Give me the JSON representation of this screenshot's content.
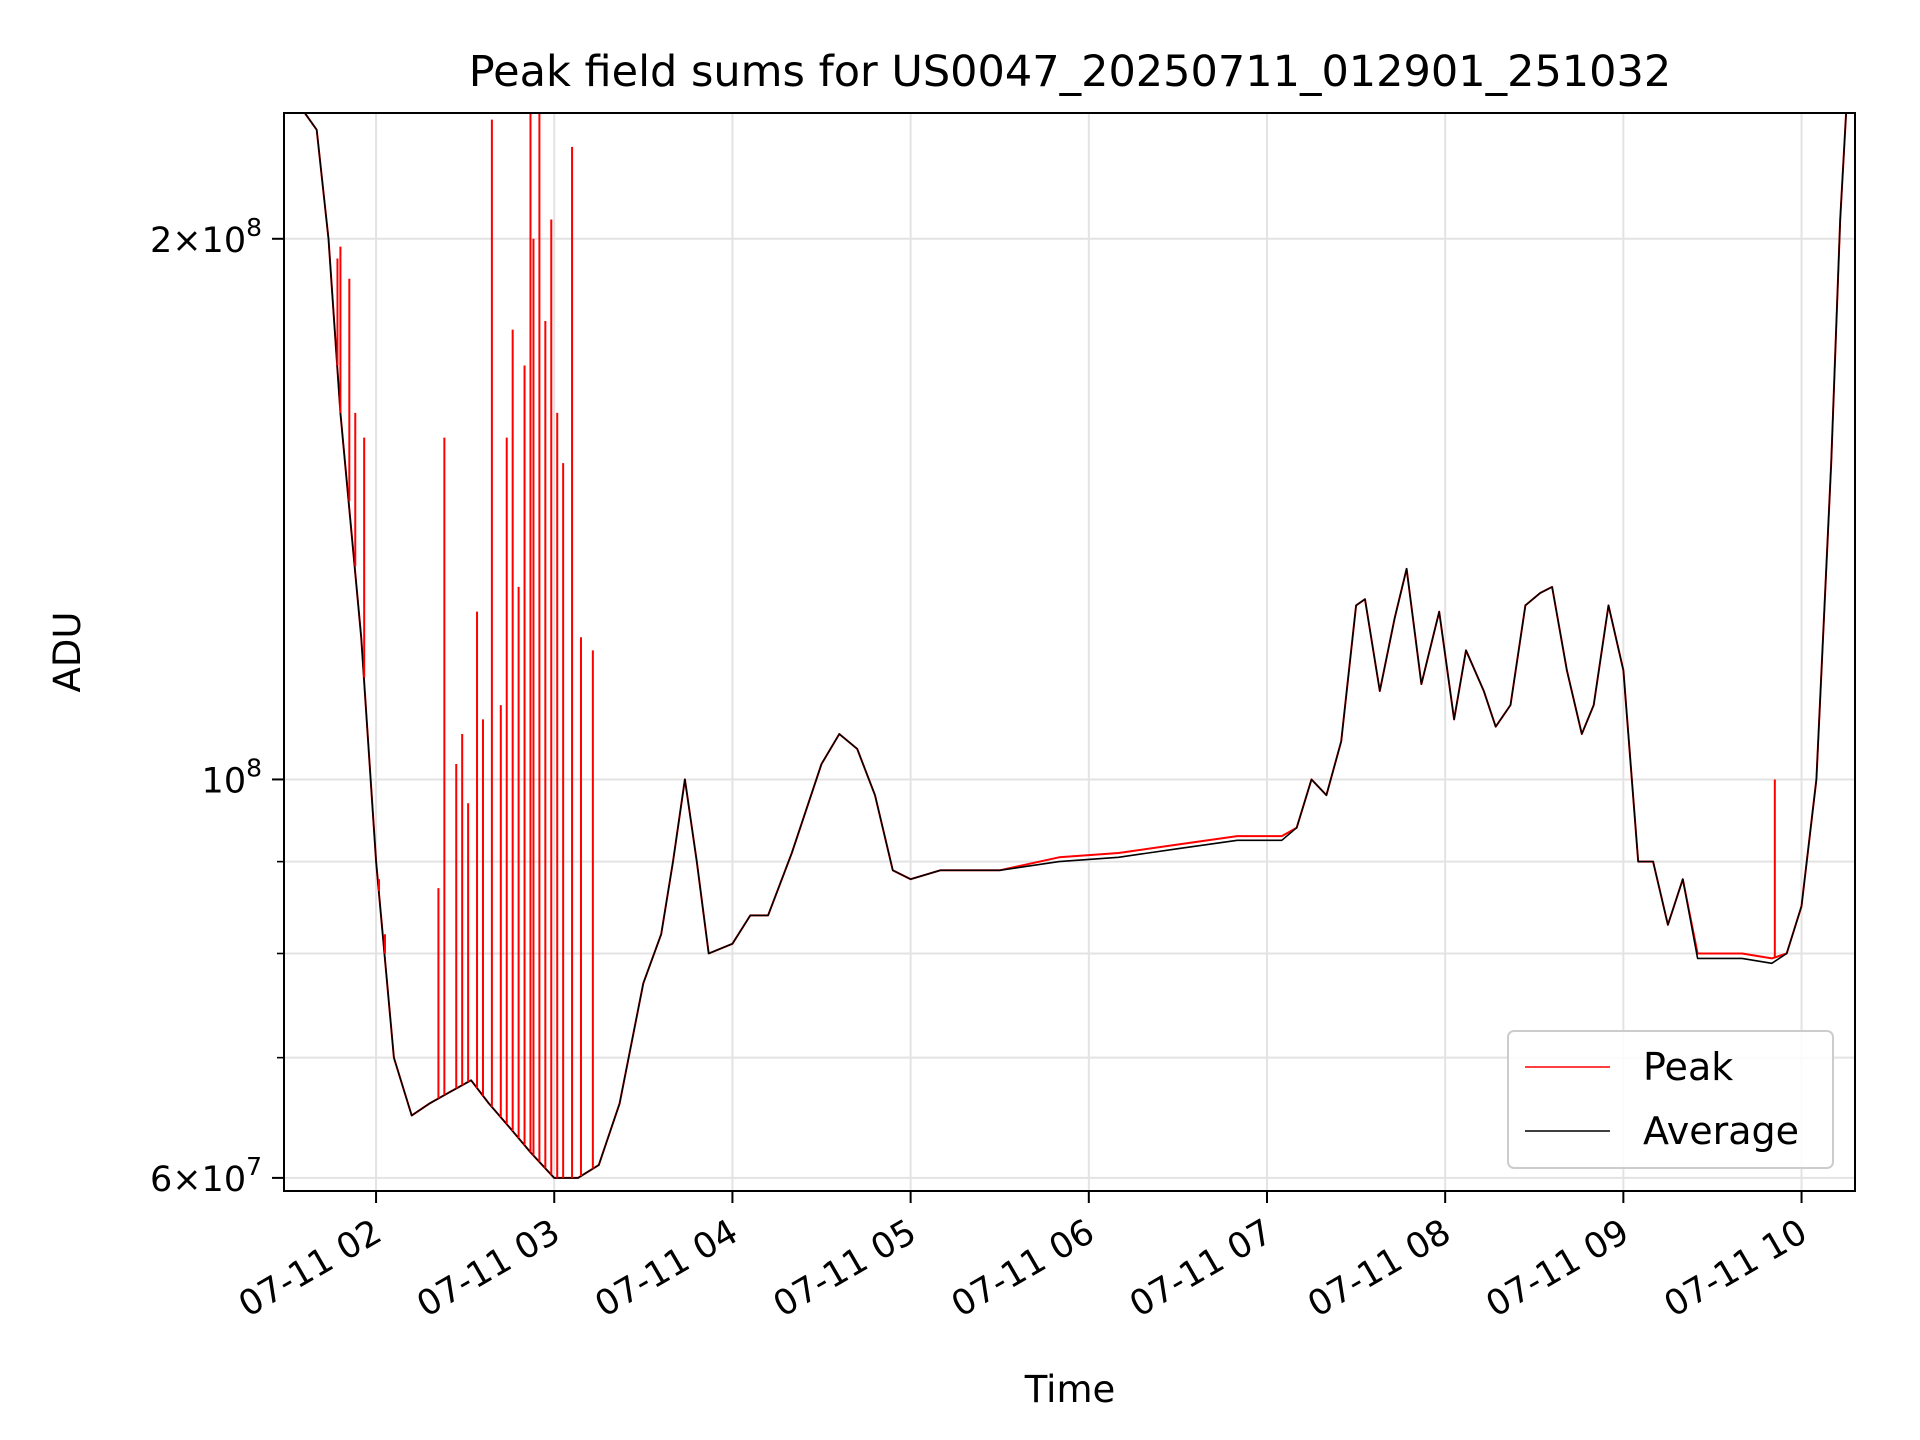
{
  "chart_data": {
    "type": "line",
    "title": "Peak field sums for US0047_20250711_012901_251032",
    "xlabel": "Time",
    "ylabel": "ADU",
    "yscale": "log",
    "xlim": [
      "2025-07-11 01:29",
      "2025-07-11 10:18"
    ],
    "ylim": [
      59000000,
      235000000
    ],
    "grid": true,
    "legend_position": "bottom-right",
    "x_ticks": [
      "07-11 02",
      "07-11 03",
      "07-11 04",
      "07-11 05",
      "07-11 06",
      "07-11 07",
      "07-11 08",
      "07-11 09",
      "07-11 10"
    ],
    "y_ticks": [
      {
        "value": 60000000,
        "base": "6",
        "exp": "7"
      },
      {
        "value": 100000000,
        "base": "",
        "exp": "8"
      },
      {
        "value": 200000000,
        "base": "2",
        "exp": "8"
      }
    ],
    "series": [
      {
        "name": "Peak",
        "color": "#ff0000",
        "points": [
          [
            "2025-07-11 01:29",
            235
          ],
          [
            "2025-07-11 01:36",
            235
          ],
          [
            "2025-07-11 01:40",
            230
          ],
          [
            "2025-07-11 01:44",
            200
          ],
          [
            "2025-07-11 01:48",
            160
          ],
          [
            "2025-07-11 01:55",
            120
          ],
          [
            "2025-07-11 02:00",
            90
          ],
          [
            "2025-07-11 02:06",
            70
          ],
          [
            "2025-07-11 02:12",
            65
          ],
          [
            "2025-07-11 02:18",
            66
          ],
          [
            "2025-07-11 02:25",
            67
          ],
          [
            "2025-07-11 02:32",
            68
          ],
          [
            "2025-07-11 02:38",
            66
          ],
          [
            "2025-07-11 02:45",
            64
          ],
          [
            "2025-07-11 02:52",
            62
          ],
          [
            "2025-07-11 03:00",
            60
          ],
          [
            "2025-07-11 03:08",
            60
          ],
          [
            "2025-07-11 03:15",
            61
          ],
          [
            "2025-07-11 03:22",
            66
          ],
          [
            "2025-07-11 03:30",
            77
          ],
          [
            "2025-07-11 03:36",
            82
          ],
          [
            "2025-07-11 03:40",
            90
          ],
          [
            "2025-07-11 03:44",
            100
          ],
          [
            "2025-07-11 03:48",
            90
          ],
          [
            "2025-07-11 03:52",
            80
          ],
          [
            "2025-07-11 04:00",
            81
          ],
          [
            "2025-07-11 04:06",
            84
          ],
          [
            "2025-07-11 04:12",
            84
          ],
          [
            "2025-07-11 04:20",
            91
          ],
          [
            "2025-07-11 04:30",
            102
          ],
          [
            "2025-07-11 04:36",
            106
          ],
          [
            "2025-07-11 04:42",
            104
          ],
          [
            "2025-07-11 04:48",
            98
          ],
          [
            "2025-07-11 04:54",
            89
          ],
          [
            "2025-07-11 05:00",
            88
          ],
          [
            "2025-07-11 05:10",
            89
          ],
          [
            "2025-07-11 05:30",
            89
          ],
          [
            "2025-07-11 05:50",
            90.5
          ],
          [
            "2025-07-11 06:10",
            91
          ],
          [
            "2025-07-11 06:30",
            92
          ],
          [
            "2025-07-11 06:50",
            93
          ],
          [
            "2025-07-11 07:05",
            93
          ],
          [
            "2025-07-11 07:10",
            94
          ],
          [
            "2025-07-11 07:15",
            100
          ],
          [
            "2025-07-11 07:20",
            98
          ],
          [
            "2025-07-11 07:25",
            105
          ],
          [
            "2025-07-11 07:30",
            125
          ],
          [
            "2025-07-11 07:33",
            126
          ],
          [
            "2025-07-11 07:38",
            112
          ],
          [
            "2025-07-11 07:43",
            123
          ],
          [
            "2025-07-11 07:47",
            131
          ],
          [
            "2025-07-11 07:52",
            113
          ],
          [
            "2025-07-11 07:58",
            124
          ],
          [
            "2025-07-11 08:03",
            108
          ],
          [
            "2025-07-11 08:07",
            118
          ],
          [
            "2025-07-11 08:13",
            112
          ],
          [
            "2025-07-11 08:17",
            107
          ],
          [
            "2025-07-11 08:22",
            110
          ],
          [
            "2025-07-11 08:27",
            125
          ],
          [
            "2025-07-11 08:32",
            127
          ],
          [
            "2025-07-11 08:36",
            128
          ],
          [
            "2025-07-11 08:41",
            115
          ],
          [
            "2025-07-11 08:46",
            106
          ],
          [
            "2025-07-11 08:50",
            110
          ],
          [
            "2025-07-11 08:55",
            125
          ],
          [
            "2025-07-11 09:00",
            115
          ],
          [
            "2025-07-11 09:05",
            90
          ],
          [
            "2025-07-11 09:10",
            90
          ],
          [
            "2025-07-11 09:15",
            83
          ],
          [
            "2025-07-11 09:20",
            88
          ],
          [
            "2025-07-11 09:25",
            80
          ],
          [
            "2025-07-11 09:40",
            80
          ],
          [
            "2025-07-11 09:50",
            79.5
          ],
          [
            "2025-07-11 09:55",
            80
          ],
          [
            "2025-07-11 10:00",
            85
          ],
          [
            "2025-07-11 10:05",
            100
          ],
          [
            "2025-07-11 10:10",
            150
          ],
          [
            "2025-07-11 10:13",
            205
          ],
          [
            "2025-07-11 10:15",
            235
          ],
          [
            "2025-07-11 10:18",
            235
          ]
        ]
      },
      {
        "name": "Average",
        "color": "#000000",
        "points": [
          [
            "2025-07-11 01:29",
            235
          ],
          [
            "2025-07-11 01:36",
            235
          ],
          [
            "2025-07-11 01:40",
            230
          ],
          [
            "2025-07-11 01:44",
            200
          ],
          [
            "2025-07-11 01:48",
            160
          ],
          [
            "2025-07-11 01:55",
            120
          ],
          [
            "2025-07-11 02:00",
            90
          ],
          [
            "2025-07-11 02:06",
            70
          ],
          [
            "2025-07-11 02:12",
            65
          ],
          [
            "2025-07-11 02:18",
            66
          ],
          [
            "2025-07-11 02:25",
            67
          ],
          [
            "2025-07-11 02:32",
            68
          ],
          [
            "2025-07-11 02:38",
            66
          ],
          [
            "2025-07-11 02:45",
            64
          ],
          [
            "2025-07-11 02:52",
            62
          ],
          [
            "2025-07-11 03:00",
            60
          ],
          [
            "2025-07-11 03:08",
            60
          ],
          [
            "2025-07-11 03:15",
            61
          ],
          [
            "2025-07-11 03:22",
            66
          ],
          [
            "2025-07-11 03:30",
            77
          ],
          [
            "2025-07-11 03:36",
            82
          ],
          [
            "2025-07-11 03:40",
            90
          ],
          [
            "2025-07-11 03:44",
            100
          ],
          [
            "2025-07-11 03:48",
            90
          ],
          [
            "2025-07-11 03:52",
            80
          ],
          [
            "2025-07-11 04:00",
            81
          ],
          [
            "2025-07-11 04:06",
            84
          ],
          [
            "2025-07-11 04:12",
            84
          ],
          [
            "2025-07-11 04:20",
            91
          ],
          [
            "2025-07-11 04:30",
            102
          ],
          [
            "2025-07-11 04:36",
            106
          ],
          [
            "2025-07-11 04:42",
            104
          ],
          [
            "2025-07-11 04:48",
            98
          ],
          [
            "2025-07-11 04:54",
            89
          ],
          [
            "2025-07-11 05:00",
            88
          ],
          [
            "2025-07-11 05:10",
            89
          ],
          [
            "2025-07-11 05:30",
            89
          ],
          [
            "2025-07-11 05:50",
            90
          ],
          [
            "2025-07-11 06:10",
            90.5
          ],
          [
            "2025-07-11 06:30",
            91.5
          ],
          [
            "2025-07-11 06:50",
            92.5
          ],
          [
            "2025-07-11 07:05",
            92.5
          ],
          [
            "2025-07-11 07:10",
            94
          ],
          [
            "2025-07-11 07:15",
            100
          ],
          [
            "2025-07-11 07:20",
            98
          ],
          [
            "2025-07-11 07:25",
            105
          ],
          [
            "2025-07-11 07:30",
            125
          ],
          [
            "2025-07-11 07:33",
            126
          ],
          [
            "2025-07-11 07:38",
            112
          ],
          [
            "2025-07-11 07:43",
            123
          ],
          [
            "2025-07-11 07:47",
            131
          ],
          [
            "2025-07-11 07:52",
            113
          ],
          [
            "2025-07-11 07:58",
            124
          ],
          [
            "2025-07-11 08:03",
            108
          ],
          [
            "2025-07-11 08:07",
            118
          ],
          [
            "2025-07-11 08:13",
            112
          ],
          [
            "2025-07-11 08:17",
            107
          ],
          [
            "2025-07-11 08:22",
            110
          ],
          [
            "2025-07-11 08:27",
            125
          ],
          [
            "2025-07-11 08:32",
            127
          ],
          [
            "2025-07-11 08:36",
            128
          ],
          [
            "2025-07-11 08:41",
            115
          ],
          [
            "2025-07-11 08:46",
            106
          ],
          [
            "2025-07-11 08:50",
            110
          ],
          [
            "2025-07-11 08:55",
            125
          ],
          [
            "2025-07-11 09:00",
            115
          ],
          [
            "2025-07-11 09:05",
            90
          ],
          [
            "2025-07-11 09:10",
            90
          ],
          [
            "2025-07-11 09:15",
            83
          ],
          [
            "2025-07-11 09:20",
            88
          ],
          [
            "2025-07-11 09:25",
            79.5
          ],
          [
            "2025-07-11 09:40",
            79.5
          ],
          [
            "2025-07-11 09:50",
            79
          ],
          [
            "2025-07-11 09:55",
            80
          ],
          [
            "2025-07-11 10:00",
            85
          ],
          [
            "2025-07-11 10:05",
            100
          ],
          [
            "2025-07-11 10:10",
            150
          ],
          [
            "2025-07-11 10:13",
            205
          ],
          [
            "2025-07-11 10:15",
            235
          ],
          [
            "2025-07-11 10:18",
            235
          ]
        ]
      }
    ],
    "point_value_multiplier": 1000000,
    "peak_spikes": [
      [
        "2025-07-11 01:47",
        195
      ],
      [
        "2025-07-11 01:48",
        198
      ],
      [
        "2025-07-11 01:51",
        190
      ],
      [
        "2025-07-11 01:53",
        160
      ],
      [
        "2025-07-11 01:56",
        155
      ],
      [
        "2025-07-11 02:01",
        88
      ],
      [
        "2025-07-11 02:03",
        82
      ],
      [
        "2025-07-11 02:21",
        87
      ],
      [
        "2025-07-11 02:23",
        155
      ],
      [
        "2025-07-11 02:27",
        102
      ],
      [
        "2025-07-11 02:29",
        106
      ],
      [
        "2025-07-11 02:31",
        97
      ],
      [
        "2025-07-11 02:34",
        124
      ],
      [
        "2025-07-11 02:36",
        108
      ],
      [
        "2025-07-11 02:39",
        233
      ],
      [
        "2025-07-11 02:42",
        110
      ],
      [
        "2025-07-11 02:44",
        155
      ],
      [
        "2025-07-11 02:46",
        178
      ],
      [
        "2025-07-11 02:48",
        128
      ],
      [
        "2025-07-11 02:50",
        170
      ],
      [
        "2025-07-11 02:52",
        235
      ],
      [
        "2025-07-11 02:53",
        200
      ],
      [
        "2025-07-11 02:55",
        235
      ],
      [
        "2025-07-11 02:57",
        180
      ],
      [
        "2025-07-11 02:59",
        205
      ],
      [
        "2025-07-11 03:01",
        160
      ],
      [
        "2025-07-11 03:03",
        150
      ],
      [
        "2025-07-11 03:06",
        225
      ],
      [
        "2025-07-11 03:09",
        120
      ],
      [
        "2025-07-11 03:13",
        118
      ],
      [
        "2025-07-11 09:51",
        100
      ]
    ]
  }
}
